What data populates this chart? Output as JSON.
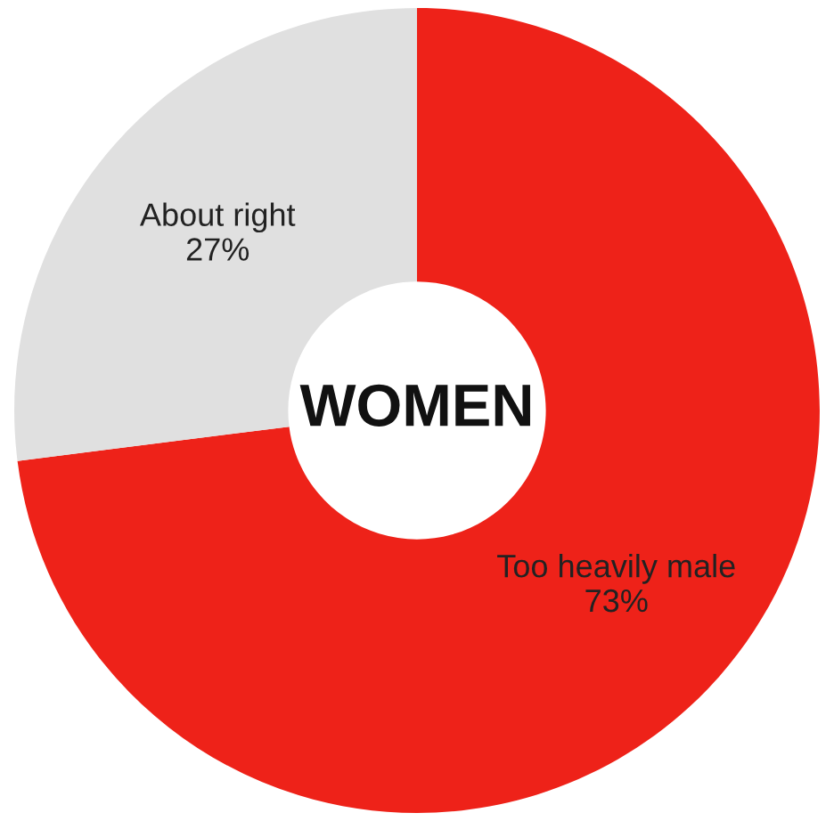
{
  "chart_data": {
    "type": "donut",
    "title": "WOMEN",
    "categories": [
      "Too heavily male",
      "About right"
    ],
    "values": [
      73,
      27
    ],
    "colors": [
      "#ee2219",
      "#e0e0e0"
    ],
    "value_labels": [
      "73%",
      "27%"
    ],
    "legend": false
  }
}
